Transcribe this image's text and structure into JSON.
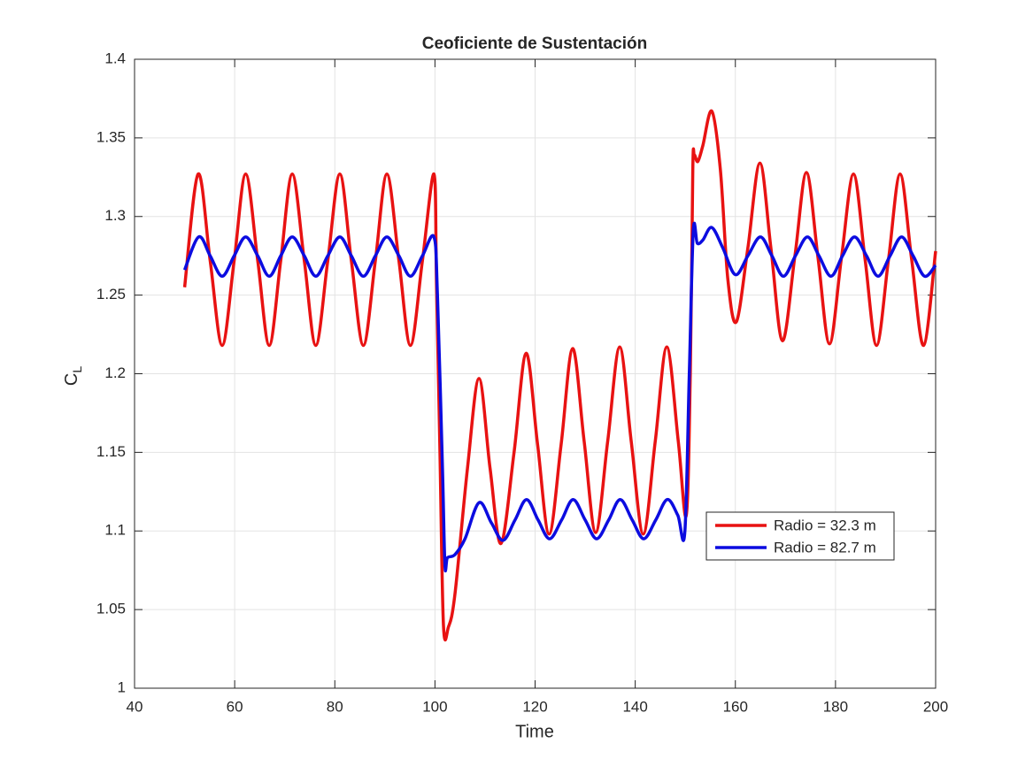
{
  "chart_data": {
    "type": "line",
    "title": "Ceoficiente de Sustentación",
    "xlabel": "Time",
    "ylabel": {
      "text": "C",
      "subscript": "L"
    },
    "xlim": [
      40,
      200
    ],
    "xticks": [
      40,
      60,
      80,
      100,
      120,
      140,
      160,
      180,
      200
    ],
    "ylim": [
      1,
      1.4
    ],
    "yticks": [
      1,
      1.05,
      1.1,
      1.15,
      1.2,
      1.25,
      1.3,
      1.35,
      1.4
    ],
    "grid": true,
    "legend": "southeast",
    "series": [
      {
        "name": "Radio = 32.3 m",
        "color": "#e81212",
        "x": [
          50,
          52.7,
          55.1,
          57.5,
          59.9,
          62.2,
          64.6,
          66.9,
          69.2,
          71.5,
          73.9,
          76.2,
          78.6,
          81.0,
          83.3,
          85.7,
          88.1,
          90.4,
          92.8,
          95.1,
          97.5,
          99.8,
          100.3,
          101,
          101.7,
          102.7,
          104,
          106.5,
          108.8,
          111,
          113.2,
          115.8,
          118.2,
          120.5,
          122.8,
          125.2,
          127.5,
          129.8,
          132.1,
          134.5,
          136.9,
          139.2,
          141.6,
          144,
          146.3,
          148.6,
          150.2,
          151,
          151.5,
          151.8,
          152.5,
          153.5,
          155.3,
          157,
          158.5,
          160.2,
          162.5,
          164.9,
          167.1,
          169.4,
          171.9,
          174.2,
          176.5,
          178.8,
          181.2,
          183.6,
          185.9,
          188.2,
          190.6,
          192.9,
          195.2,
          197.6,
          200
        ],
        "values": [
          1.255,
          1.327,
          1.272,
          1.218,
          1.272,
          1.327,
          1.272,
          1.218,
          1.272,
          1.327,
          1.272,
          1.218,
          1.272,
          1.327,
          1.272,
          1.218,
          1.272,
          1.327,
          1.272,
          1.218,
          1.272,
          1.327,
          1.26,
          1.15,
          1.04,
          1.039,
          1.06,
          1.14,
          1.197,
          1.14,
          1.092,
          1.15,
          1.213,
          1.155,
          1.098,
          1.155,
          1.216,
          1.157,
          1.099,
          1.157,
          1.217,
          1.157,
          1.098,
          1.157,
          1.217,
          1.157,
          1.11,
          1.2,
          1.33,
          1.339,
          1.335,
          1.345,
          1.367,
          1.33,
          1.26,
          1.233,
          1.28,
          1.334,
          1.28,
          1.221,
          1.275,
          1.328,
          1.274,
          1.219,
          1.274,
          1.327,
          1.273,
          1.218,
          1.273,
          1.327,
          1.273,
          1.218,
          1.278
        ]
      },
      {
        "name": "Radio = 82.7 m",
        "color": "#0c0ce0",
        "x": [
          50,
          52.8,
          55.1,
          57.5,
          59.9,
          62.2,
          64.6,
          66.9,
          69.2,
          71.5,
          73.9,
          76.2,
          78.6,
          81.0,
          83.3,
          85.7,
          88.1,
          90.4,
          92.8,
          95.1,
          97.5,
          99.8,
          100.5,
          101.5,
          102,
          102.5,
          104,
          106,
          108.8,
          111.3,
          113.6,
          116,
          118.3,
          120.6,
          122.9,
          125.3,
          127.6,
          130,
          132.3,
          134.7,
          137,
          139.4,
          141.7,
          144.1,
          146.4,
          148.5,
          149.9,
          150.8,
          151.6,
          152.4,
          153.5,
          155.3,
          157.5,
          160,
          162.5,
          165,
          167.3,
          169.6,
          172,
          174.4,
          176.7,
          179.1,
          181.4,
          183.8,
          186.2,
          188.5,
          190.9,
          193.2,
          195.5,
          197.8,
          200
        ],
        "values": [
          1.266,
          1.287,
          1.275,
          1.262,
          1.275,
          1.287,
          1.275,
          1.262,
          1.275,
          1.287,
          1.275,
          1.262,
          1.275,
          1.287,
          1.275,
          1.262,
          1.275,
          1.287,
          1.275,
          1.262,
          1.275,
          1.287,
          1.25,
          1.14,
          1.078,
          1.083,
          1.085,
          1.095,
          1.118,
          1.105,
          1.094,
          1.107,
          1.12,
          1.107,
          1.095,
          1.107,
          1.12,
          1.107,
          1.095,
          1.107,
          1.12,
          1.107,
          1.095,
          1.107,
          1.12,
          1.11,
          1.099,
          1.2,
          1.291,
          1.283,
          1.285,
          1.293,
          1.28,
          1.263,
          1.275,
          1.287,
          1.275,
          1.262,
          1.275,
          1.287,
          1.275,
          1.262,
          1.275,
          1.287,
          1.275,
          1.262,
          1.275,
          1.287,
          1.275,
          1.262,
          1.269
        ]
      }
    ]
  }
}
